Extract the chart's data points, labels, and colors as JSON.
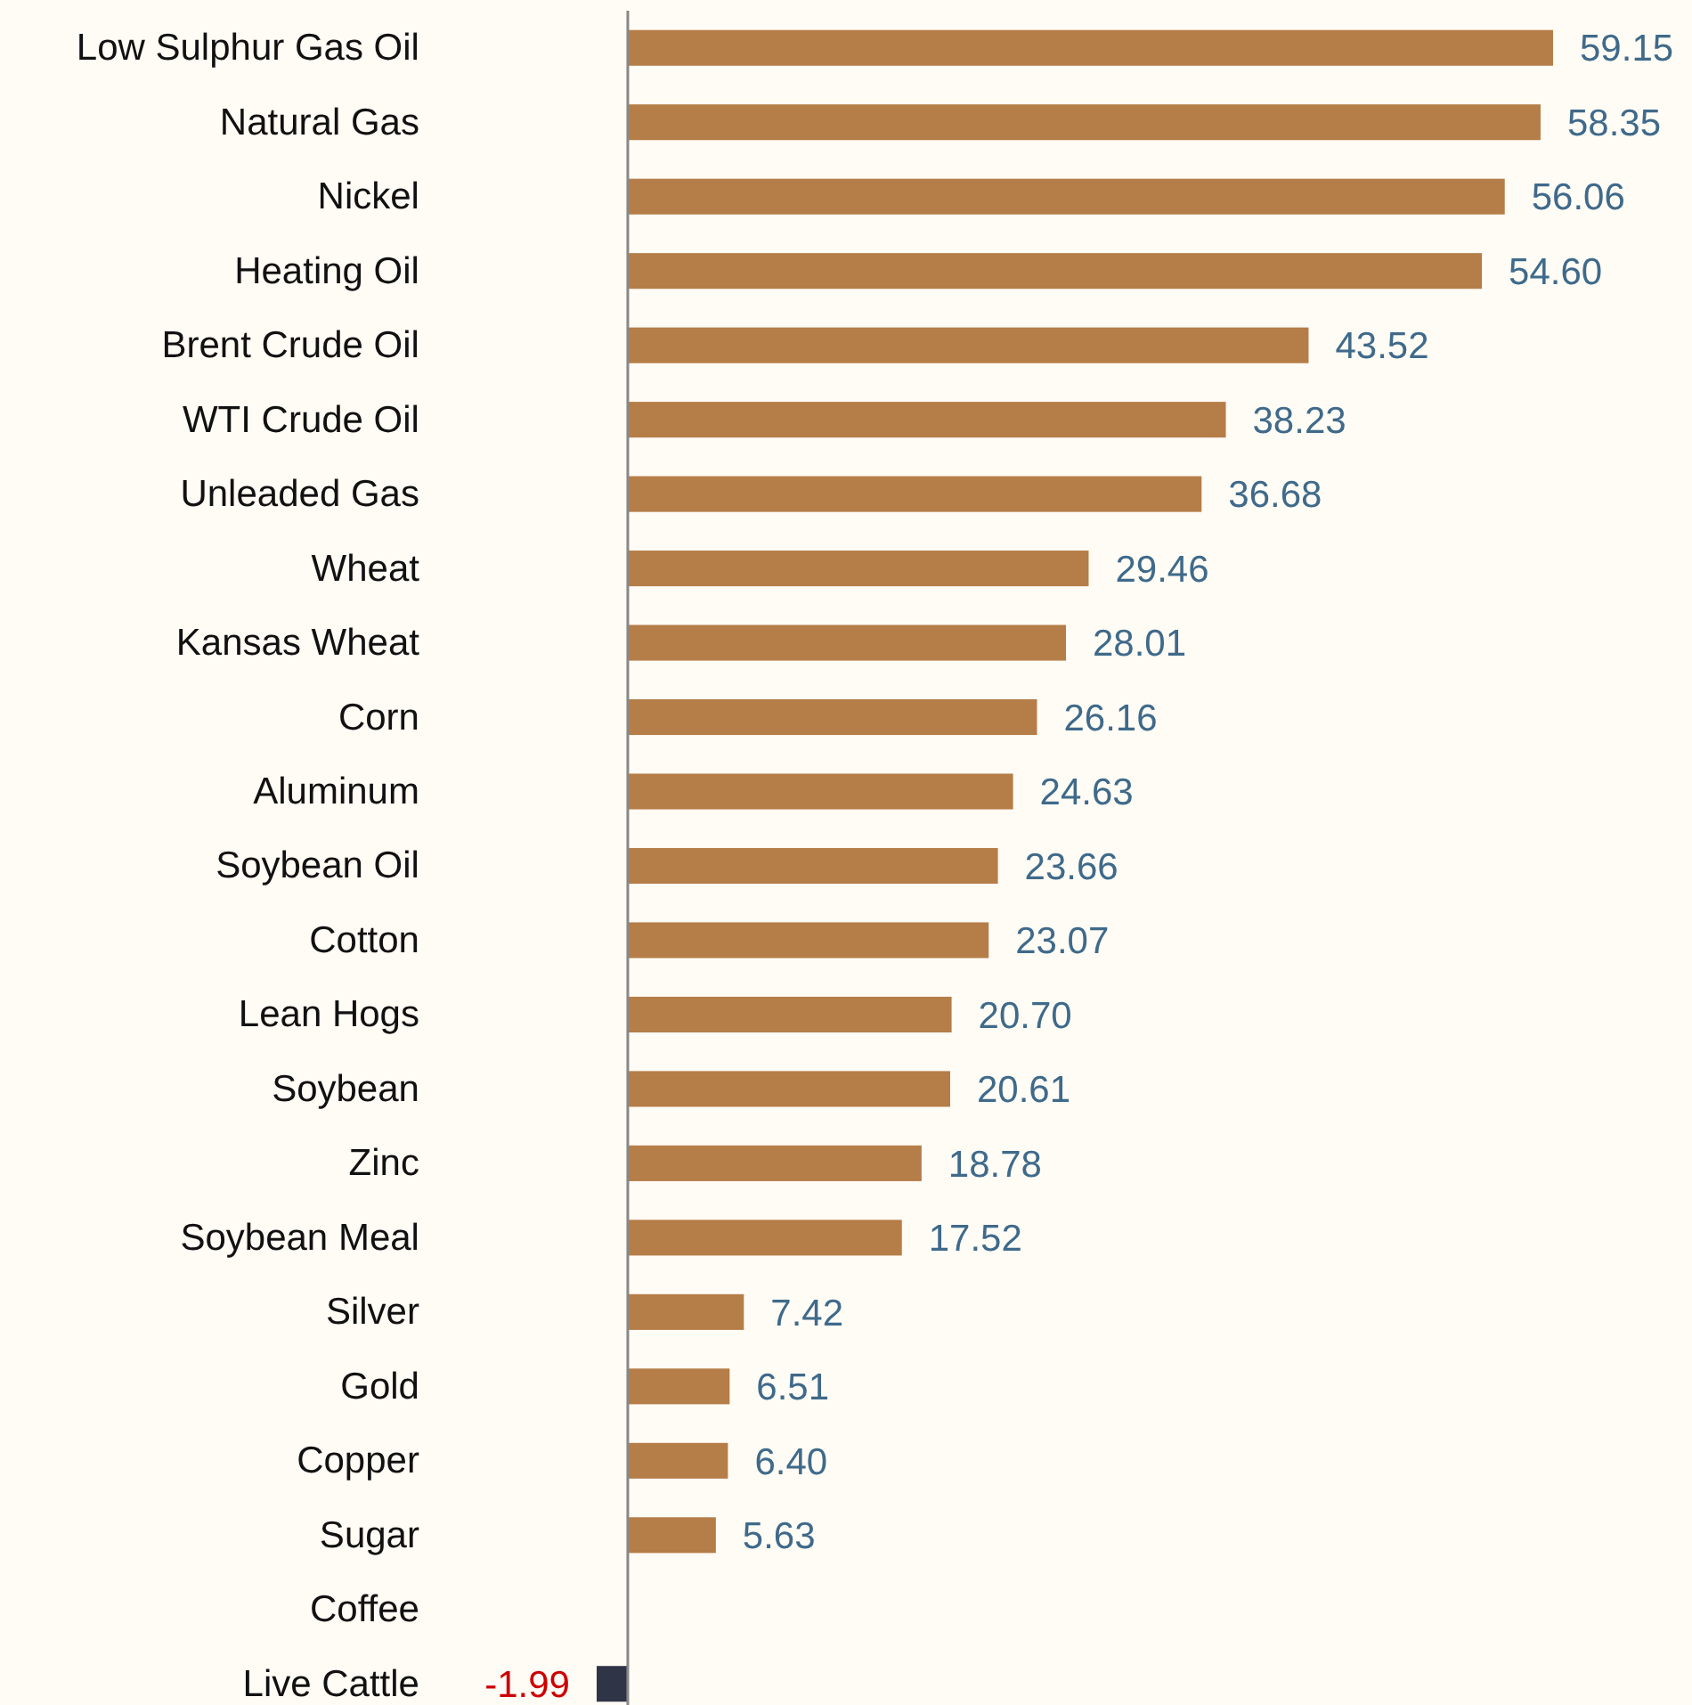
{
  "chart_data": {
    "type": "bar",
    "orientation": "horizontal",
    "categories": [
      "Low Sulphur Gas Oil",
      "Natural Gas",
      "Nickel",
      "Heating Oil",
      "Brent Crude Oil",
      "WTI Crude Oil",
      "Unleaded Gas",
      "Wheat",
      "Kansas Wheat",
      "Corn",
      "Aluminum",
      "Soybean Oil",
      "Cotton",
      "Lean Hogs",
      "Soybean",
      "Zinc",
      "Soybean Meal",
      "Silver",
      "Gold",
      "Copper",
      "Sugar",
      "Coffee",
      "Live Cattle"
    ],
    "values": [
      59.15,
      58.35,
      56.06,
      54.6,
      43.52,
      38.23,
      36.68,
      29.46,
      28.01,
      26.16,
      24.63,
      23.66,
      23.07,
      20.7,
      20.61,
      18.78,
      17.52,
      7.42,
      6.51,
      6.4,
      5.63,
      null,
      -1.99
    ],
    "value_labels": [
      "59.15",
      "58.35",
      "56.06",
      "54.60",
      "43.52",
      "38.23",
      "36.68",
      "29.46",
      "28.01",
      "26.16",
      "24.63",
      "23.66",
      "23.07",
      "20.70",
      "20.61",
      "18.78",
      "17.52",
      "7.42",
      "6.51",
      "6.40",
      "5.63",
      null,
      "-1.99"
    ],
    "colors": [
      "#b57d47",
      "#b57d47",
      "#b57d47",
      "#b57d47",
      "#b57d47",
      "#b57d47",
      "#b57d47",
      "#b57d47",
      "#b57d47",
      "#b57d47",
      "#b57d47",
      "#b57d47",
      "#b57d47",
      "#b57d47",
      "#b57d47",
      "#b57d47",
      "#b57d47",
      "#b57d47",
      "#b57d47",
      "#b57d47",
      "#b57d47",
      null,
      "#2f3447"
    ]
  }
}
